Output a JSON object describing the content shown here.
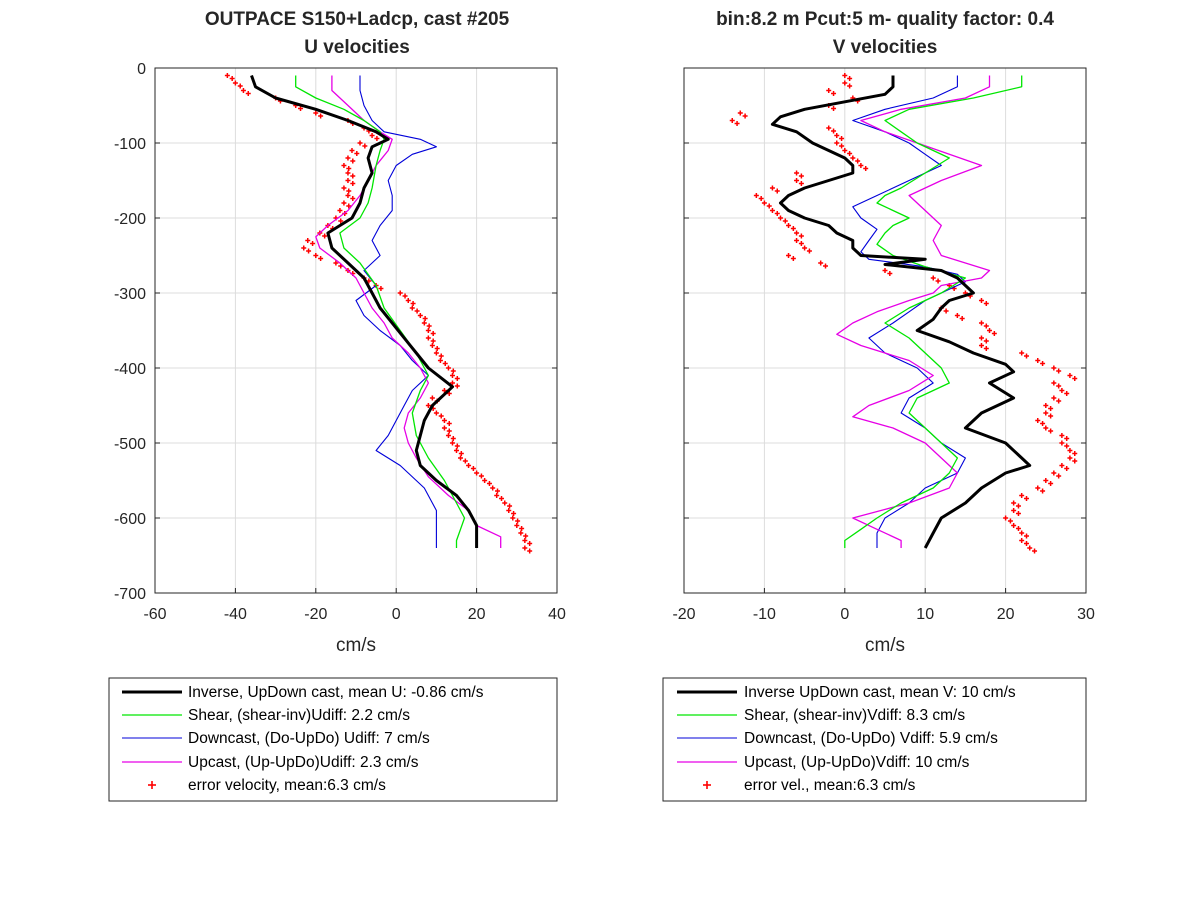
{
  "chart_data": [
    {
      "type": "line",
      "title": [
        "OUTPACE S150+Ladcp, cast #205",
        "U velocities"
      ],
      "xlabel": "cm/s",
      "ylabel": "",
      "xlim": [
        -60,
        40
      ],
      "ylim": [
        -700,
        0
      ],
      "xticks": [
        -60,
        -40,
        -20,
        0,
        20,
        40
      ],
      "yticks": [
        0,
        -100,
        -200,
        -300,
        -400,
        -500,
        -600,
        -700
      ],
      "grid": true,
      "legend_position": "below",
      "series": [
        {
          "name": "Inverse, UpDown cast, mean U:  -0.86 cm/s",
          "color": "#000000",
          "width": 3,
          "y": [
            -10,
            -25,
            -40,
            -55,
            -70,
            -85,
            -95,
            -105,
            -120,
            -140,
            -160,
            -180,
            -200,
            -220,
            -240,
            -260,
            -280,
            -300,
            -320,
            -340,
            -360,
            -380,
            -400,
            -425,
            -450,
            -470,
            -490,
            -510,
            -530,
            -550,
            -570,
            -590,
            -610,
            -620,
            -640
          ],
          "x": [
            -36,
            -35,
            -30,
            -20,
            -12,
            -5,
            -2,
            -6,
            -7,
            -6,
            -8,
            -9,
            -11,
            -17,
            -16,
            -12,
            -8,
            -6,
            -4,
            -1,
            2,
            5,
            8,
            14,
            9,
            7,
            6,
            5,
            6,
            10,
            15,
            18,
            20,
            20,
            20
          ]
        },
        {
          "name": "Shear, (shear-inv)Udiff:  2.2 cm/s",
          "color": "#00e600",
          "width": 1.3,
          "y": [
            -10,
            -25,
            -40,
            -55,
            -70,
            -85,
            -95,
            -110,
            -130,
            -160,
            -180,
            -200,
            -220,
            -240,
            -260,
            -290,
            -320,
            -350,
            -380,
            -410,
            -430,
            -460,
            -490,
            -520,
            -550,
            -580,
            -600,
            -615,
            -630,
            -640
          ],
          "x": [
            -25,
            -25,
            -20,
            -13,
            -8,
            -4,
            -3,
            -4,
            -5,
            -6,
            -7,
            -9,
            -14,
            -13,
            -9,
            -5,
            -3,
            1,
            5,
            8,
            6,
            4,
            5,
            8,
            12,
            15,
            17,
            16,
            15,
            15
          ]
        },
        {
          "name": "Downcast, (Do-UpDo) Udiff:  7 cm/s",
          "color": "#0000d9",
          "width": 1.1,
          "y": [
            -10,
            -30,
            -50,
            -70,
            -85,
            -95,
            -105,
            -115,
            -130,
            -150,
            -170,
            -190,
            -210,
            -230,
            -250,
            -270,
            -290,
            -310,
            -330,
            -350,
            -370,
            -390,
            -410,
            -430,
            -450,
            -470,
            -490,
            -510,
            -530,
            -560,
            -590,
            -610,
            -630,
            -640
          ],
          "x": [
            -9,
            -9,
            -8,
            -6,
            -3,
            6,
            10,
            4,
            0,
            -2,
            -1,
            -1,
            -4,
            -6,
            -4,
            -8,
            -5,
            -10,
            -8,
            -4,
            1,
            4,
            8,
            4,
            2,
            0,
            -2,
            -5,
            1,
            7,
            10,
            10,
            10,
            10
          ]
        },
        {
          "name": "Upcast, (Up-UpDo)Udiff:  2.3 cm/s",
          "color": "#e600e6",
          "width": 1.3,
          "y": [
            -10,
            -30,
            -50,
            -70,
            -85,
            -95,
            -110,
            -130,
            -150,
            -170,
            -190,
            -210,
            -225,
            -240,
            -260,
            -280,
            -300,
            -320,
            -340,
            -360,
            -380,
            -400,
            -420,
            -440,
            -460,
            -480,
            -500,
            -520,
            -545,
            -570,
            -590,
            -610,
            -625,
            -640
          ],
          "x": [
            -16,
            -16,
            -12,
            -8,
            -4,
            -1,
            -2,
            -5,
            -7,
            -9,
            -12,
            -17,
            -20,
            -19,
            -14,
            -10,
            -8,
            -6,
            -3,
            -1,
            3,
            6,
            8,
            6,
            3,
            2,
            3,
            5,
            8,
            13,
            18,
            20,
            26,
            26
          ]
        }
      ],
      "error_velocity": {
        "name": "error velocity, mean:6.3 cm/s",
        "color": "#ff0000",
        "y": [
          -10,
          -20,
          -30,
          -40,
          -50,
          -60,
          -70,
          -80,
          -90,
          -100,
          -110,
          -120,
          -130,
          -140,
          -150,
          -160,
          -170,
          -180,
          -190,
          -200,
          -210,
          -220,
          -230,
          -240,
          -250,
          -260,
          -270,
          -280,
          -290,
          -300,
          -310,
          -320,
          -330,
          -340,
          -350,
          -360,
          -370,
          -380,
          -390,
          -400,
          -410,
          -420,
          -430,
          -440,
          -450,
          -460,
          -470,
          -480,
          -490,
          -500,
          -510,
          -520,
          -530,
          -540,
          -550,
          -560,
          -570,
          -580,
          -590,
          -600,
          -610,
          -620,
          -630,
          -640
        ],
        "x": [
          -42,
          -40,
          -38,
          -30,
          -25,
          -20,
          -12,
          -8,
          -6,
          -9,
          -11,
          -12,
          -13,
          -12,
          -12,
          -13,
          -12,
          -13,
          -14,
          -15,
          -17,
          -19,
          -22,
          -23,
          -20,
          -15,
          -12,
          -8,
          -5,
          1,
          3,
          4,
          6,
          7,
          8,
          8,
          9,
          10,
          11,
          13,
          14,
          14,
          12,
          9,
          8,
          10,
          12,
          12,
          13,
          14,
          15,
          16,
          18,
          20,
          22,
          24,
          25,
          27,
          28,
          29,
          30,
          31,
          32,
          32
        ]
      }
    },
    {
      "type": "line",
      "title": [
        "bin:8.2 m  Pcut:5 m- quality factor:  0.4",
        "V velocities"
      ],
      "xlabel": "cm/s",
      "ylabel": "",
      "xlim": [
        -20,
        30
      ],
      "ylim": [
        -700,
        0
      ],
      "xticks": [
        -20,
        -10,
        0,
        10,
        20,
        30
      ],
      "yticks": [
        0,
        -100,
        -200,
        -300,
        -400,
        -500,
        -600,
        -700
      ],
      "grid": true,
      "legend_position": "below",
      "series": [
        {
          "name": "Inverse UpDown cast, mean V:  10 cm/s",
          "color": "#000000",
          "width": 3,
          "y": [
            -10,
            -25,
            -35,
            -45,
            -55,
            -65,
            -75,
            -85,
            -100,
            -110,
            -120,
            -130,
            -140,
            -150,
            -160,
            -170,
            -180,
            -190,
            -200,
            -210,
            -220,
            -230,
            -240,
            -250,
            -255,
            -262,
            -270,
            -280,
            -290,
            -300,
            -310,
            -320,
            -335,
            -350,
            -365,
            -380,
            -395,
            -405,
            -420,
            -440,
            -460,
            -480,
            -500,
            -520,
            -530,
            -540,
            -560,
            -580,
            -600,
            -620,
            -640
          ],
          "x": [
            6,
            6,
            5,
            0,
            -5,
            -8,
            -9,
            -6,
            -4,
            -2,
            0,
            1,
            1,
            -2,
            -5,
            -7,
            -8,
            -7,
            -5,
            -2,
            -1,
            1,
            1,
            2,
            10,
            5,
            12,
            14,
            15,
            16,
            13,
            12,
            11,
            9,
            13,
            16,
            20,
            21,
            18,
            21,
            17,
            15,
            20,
            22,
            23,
            20,
            17,
            15,
            12,
            11,
            10
          ]
        },
        {
          "name": "Shear, (shear-inv)Vdiff:  8.3 cm/s",
          "color": "#00e600",
          "width": 1.3,
          "y": [
            -10,
            -25,
            -40,
            -55,
            -70,
            -85,
            -100,
            -110,
            -120,
            -140,
            -160,
            -170,
            -180,
            -190,
            -200,
            -210,
            -220,
            -235,
            -250,
            -265,
            -280,
            -300,
            -320,
            -340,
            -360,
            -380,
            -400,
            -420,
            -440,
            -460,
            -480,
            -500,
            -520,
            -540,
            -560,
            -580,
            -600,
            -615,
            -630,
            -640
          ],
          "x": [
            22,
            22,
            16,
            8,
            5,
            7,
            9,
            11,
            13,
            10,
            7,
            5,
            4,
            6,
            8,
            6,
            5,
            4,
            6,
            10,
            15,
            12,
            8,
            5,
            8,
            10,
            12,
            13,
            9,
            8,
            10,
            12,
            14,
            13,
            11,
            7,
            4,
            2,
            0,
            0
          ]
        },
        {
          "name": "Downcast, (Do-UpDo) Vdiff:  5.9 cm/s",
          "color": "#0000d9",
          "width": 1.1,
          "y": [
            -10,
            -25,
            -40,
            -55,
            -70,
            -85,
            -100,
            -115,
            -130,
            -150,
            -170,
            -185,
            -200,
            -215,
            -230,
            -245,
            -255,
            -265,
            -275,
            -285,
            -295,
            -310,
            -325,
            -340,
            -360,
            -380,
            -400,
            -420,
            -440,
            -460,
            -480,
            -500,
            -520,
            -540,
            -560,
            -580,
            -600,
            -620,
            -640
          ],
          "x": [
            14,
            14,
            11,
            5,
            1,
            5,
            8,
            10,
            12,
            8,
            4,
            1,
            2,
            4,
            3,
            2,
            3,
            10,
            14,
            15,
            13,
            10,
            8,
            6,
            3,
            5,
            9,
            11,
            8,
            7,
            10,
            12,
            15,
            14,
            10,
            8,
            5,
            4,
            4
          ]
        },
        {
          "name": "Upcast, (Up-UpDo)Vdiff:  10 cm/s",
          "color": "#e600e6",
          "width": 1.3,
          "y": [
            -10,
            -25,
            -40,
            -55,
            -70,
            -85,
            -100,
            -115,
            -130,
            -150,
            -170,
            -190,
            -210,
            -230,
            -250,
            -270,
            -280,
            -290,
            -300,
            -310,
            -325,
            -340,
            -355,
            -370,
            -390,
            -410,
            -430,
            -450,
            -465,
            -480,
            -500,
            -520,
            -540,
            -560,
            -580,
            -600,
            -615,
            -630,
            -640
          ],
          "x": [
            18,
            18,
            15,
            7,
            2,
            5,
            9,
            13,
            17,
            12,
            8,
            10,
            12,
            11,
            12,
            18,
            17,
            12,
            11,
            8,
            4,
            1,
            -1,
            2,
            8,
            11,
            8,
            3,
            1,
            6,
            10,
            12,
            14,
            13,
            8,
            1,
            4,
            7,
            7
          ]
        }
      ],
      "error_velocity": {
        "name": "error vel., mean:6.3 cm/s",
        "color": "#ff0000",
        "y": [
          -10,
          -20,
          -30,
          -40,
          -50,
          -60,
          -70,
          -80,
          -90,
          -100,
          -110,
          -120,
          -130,
          -140,
          -150,
          -160,
          -170,
          -180,
          -190,
          -200,
          -210,
          -220,
          -230,
          -240,
          -250,
          -260,
          -270,
          -280,
          -290,
          -300,
          -310,
          -320,
          -330,
          -340,
          -350,
          -360,
          -370,
          -380,
          -390,
          -400,
          -410,
          -420,
          -430,
          -440,
          -450,
          -460,
          -470,
          -480,
          -490,
          -500,
          -510,
          -520,
          -530,
          -540,
          -550,
          -560,
          -570,
          -580,
          -590,
          -600,
          -610,
          -620,
          -630,
          -640
        ],
        "x": [
          0,
          0,
          -2,
          1,
          -2,
          -13,
          -14,
          -2,
          -1,
          -1,
          0,
          1,
          2,
          -6,
          -6,
          -9,
          -11,
          -10,
          -9,
          -8,
          -7,
          -6,
          -6,
          -5,
          -7,
          -3,
          5,
          11,
          13,
          15,
          17,
          12,
          14,
          17,
          18,
          17,
          17,
          22,
          24,
          26,
          28,
          26,
          27,
          26,
          25,
          25,
          24,
          25,
          27,
          27,
          28,
          28,
          27,
          26,
          25,
          24,
          22,
          21,
          21,
          20,
          21,
          22,
          22,
          23
        ]
      }
    }
  ]
}
